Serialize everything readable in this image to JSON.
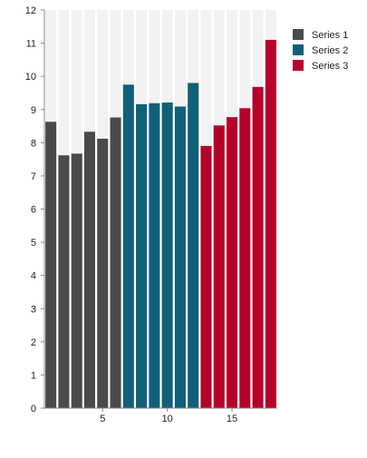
{
  "chart_data": {
    "type": "bar",
    "x": [
      1,
      2,
      3,
      4,
      5,
      6,
      7,
      8,
      9,
      10,
      11,
      12,
      13,
      14,
      15,
      16,
      17,
      18
    ],
    "series": [
      {
        "name": "Series 1",
        "color": "#4a4a4a",
        "x": [
          1,
          2,
          3,
          4,
          5,
          6
        ],
        "values": [
          8.63,
          7.62,
          7.67,
          8.33,
          8.12,
          8.76
        ]
      },
      {
        "name": "Series 2",
        "color": "#11607a",
        "x": [
          7,
          8,
          9,
          10,
          11,
          12
        ],
        "values": [
          9.75,
          9.16,
          9.19,
          9.21,
          9.09,
          9.8
        ]
      },
      {
        "name": "Series 3",
        "color": "#b5002a",
        "x": [
          13,
          14,
          15,
          16,
          17,
          18
        ],
        "values": [
          7.9,
          8.52,
          8.77,
          9.04,
          9.68,
          11.1
        ]
      }
    ],
    "ylim": [
      0,
      12
    ],
    "yticks": [
      "0",
      "1",
      "2",
      "3",
      "4",
      "5",
      "6",
      "7",
      "8",
      "9",
      "10",
      "11",
      "12"
    ],
    "xticks": [
      {
        "value": 5,
        "label": "5"
      },
      {
        "value": 10,
        "label": "10"
      },
      {
        "value": 15,
        "label": "15"
      }
    ],
    "title": "",
    "xlabel": "",
    "ylabel": "",
    "background_color": "#f2f2f2",
    "legend_position": "top-right"
  }
}
